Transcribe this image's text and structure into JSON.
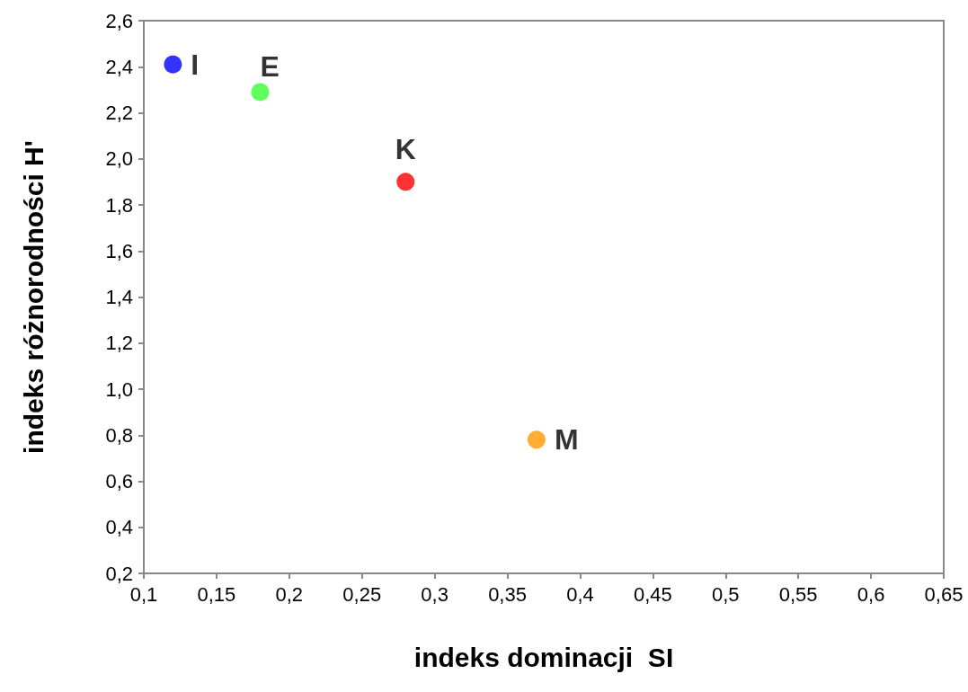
{
  "chart_data": {
    "type": "scatter",
    "xlabel": "indeks dominacji  SI",
    "ylabel": "indeks różnorodności H'",
    "series": [
      {
        "name": "I",
        "color": "#0000ff",
        "x": [
          0.12
        ],
        "values": [
          2.41
        ]
      },
      {
        "name": "E",
        "color": "#33ff33",
        "x": [
          0.18
        ],
        "values": [
          2.29
        ]
      },
      {
        "name": "K",
        "color": "#ff0000",
        "x": [
          0.28
        ],
        "values": [
          1.9
        ]
      },
      {
        "name": "M",
        "color": "#ff9900",
        "x": [
          0.37
        ],
        "values": [
          0.78
        ]
      }
    ],
    "xlim": [
      0.1,
      0.65
    ],
    "xticks": [
      {
        "value": 0.1,
        "label": "0,1"
      },
      {
        "value": 0.15,
        "label": "0,15"
      },
      {
        "value": 0.2,
        "label": "0,2"
      },
      {
        "value": 0.25,
        "label": "0,25"
      },
      {
        "value": 0.3,
        "label": "0,3"
      },
      {
        "value": 0.35,
        "label": "0,35"
      },
      {
        "value": 0.4,
        "label": "0,4"
      },
      {
        "value": 0.45,
        "label": "0,45"
      },
      {
        "value": 0.5,
        "label": "0,5"
      },
      {
        "value": 0.55,
        "label": "0,55"
      },
      {
        "value": 0.6,
        "label": "0,6"
      },
      {
        "value": 0.65,
        "label": "0,65"
      }
    ],
    "ylim": [
      0.2,
      2.6
    ],
    "yticks": [
      {
        "value": 0.2,
        "label": "0,2"
      },
      {
        "value": 0.4,
        "label": "0,4"
      },
      {
        "value": 0.6,
        "label": "0,6"
      },
      {
        "value": 0.8,
        "label": "0,8"
      },
      {
        "value": 1.0,
        "label": "1,0"
      },
      {
        "value": 1.2,
        "label": "1,2"
      },
      {
        "value": 1.4,
        "label": "1,4"
      },
      {
        "value": 1.6,
        "label": "1,6"
      },
      {
        "value": 1.8,
        "label": "1,8"
      },
      {
        "value": 2.0,
        "label": "2,0"
      },
      {
        "value": 2.2,
        "label": "2,2"
      },
      {
        "value": 2.4,
        "label": "2,4"
      },
      {
        "value": 2.6,
        "label": "2,6"
      }
    ],
    "grid": false,
    "legend": false,
    "marker": "circle"
  }
}
